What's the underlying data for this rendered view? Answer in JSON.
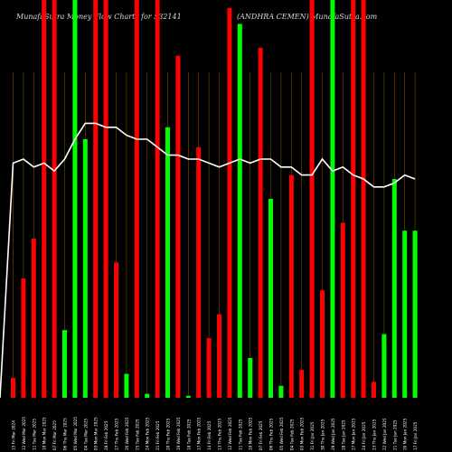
{
  "header": {
    "title_left": "MunafaSutra  Money Flow  Charts for 532141",
    "title_right": "(ANDHRA CEMEN) MunafaSutra.com"
  },
  "chart_data": {
    "type": "bar",
    "description": "Daily money-flow bars (green up, red down) with price line overlay",
    "series": [
      {
        "name": "money_flow",
        "colors": [
          "red",
          "red",
          "red",
          "red",
          "red",
          "green",
          "green",
          "green",
          "red",
          "red",
          "red",
          "green",
          "red",
          "green",
          "red",
          "green",
          "red",
          "green",
          "red",
          "red",
          "red",
          "red",
          "green",
          "green",
          "red",
          "green",
          "green",
          "red",
          "red",
          "red",
          "red",
          "green",
          "red",
          "red",
          "red",
          "red",
          "green",
          "green",
          "green",
          "green"
        ],
        "values": [
          0.05,
          0.3,
          0.4,
          1.0,
          1.0,
          0.17,
          1.0,
          0.65,
          1.0,
          1.0,
          0.34,
          0.06,
          1.0,
          0.01,
          1.0,
          0.68,
          0.86,
          0.005,
          0.63,
          0.15,
          0.21,
          0.98,
          0.94,
          0.1,
          0.88,
          0.5,
          0.03,
          0.56,
          0.07,
          1.0,
          0.27,
          1.0,
          0.44,
          1.0,
          1.0,
          0.04,
          0.16,
          0.55,
          0.42,
          0.42
        ]
      },
      {
        "name": "price_line",
        "values": [
          0.59,
          0.6,
          0.58,
          0.59,
          0.57,
          0.6,
          0.65,
          0.69,
          0.69,
          0.68,
          0.68,
          0.66,
          0.65,
          0.65,
          0.63,
          0.61,
          0.61,
          0.6,
          0.6,
          0.59,
          0.58,
          0.59,
          0.6,
          0.59,
          0.6,
          0.6,
          0.58,
          0.58,
          0.56,
          0.56,
          0.6,
          0.57,
          0.58,
          0.56,
          0.55,
          0.53,
          0.53,
          0.54,
          0.56,
          0.55
        ]
      }
    ],
    "categories": [
      "15 Fri Mar 2024",
      "12 Wed Mar 2025",
      "11 Tue Mar 2025",
      "10 Mon Mar 2025",
      "07 Fri Mar 2025",
      "06 Thu Mar 2025",
      "05 Wed Mar 2025",
      "04 Tue Mar 2025",
      "03 Mon Mar 2025",
      "28 Fri Feb 2025",
      "27 Thu Feb 2025",
      "26 Wed Feb 2025",
      "25 Tue Feb 2025",
      "24 Mon Feb 2025",
      "21 Fri Feb 2025",
      "20 Thu Feb 2025",
      "19 Wed Feb 2025",
      "18 Tue Feb 2025",
      "17 Mon Feb 2025",
      "14 Fri Feb 2025",
      "13 Thu Feb 2025",
      "12 Wed Feb 2025",
      "11 Tue Feb 2025",
      "10 Mon Feb 2025",
      "07 Fri Feb 2025",
      "06 Thu Feb 2025",
      "05 Wed Feb 2025",
      "04 Tue Feb 2025",
      "03 Mon Feb 2025",
      "31 Fri Jan 2025",
      "30 Thu Jan 2025",
      "29 Wed Jan 2025",
      "28 Tue Jan 2025",
      "27 Mon Jan 2025",
      "24 Fri Jan 2025",
      "23 Thu Jan 2025",
      "22 Wed Jan 2025",
      "21 Tue Jan 2025",
      "20 Mon Jan 2025",
      "17 Fri Jan 2025"
    ],
    "colors": {
      "background": "#000000",
      "up": "#00ff00",
      "down": "#ff0000",
      "line": "#ffffff",
      "grid": "#7a4a00",
      "text": "#ffffff"
    }
  }
}
